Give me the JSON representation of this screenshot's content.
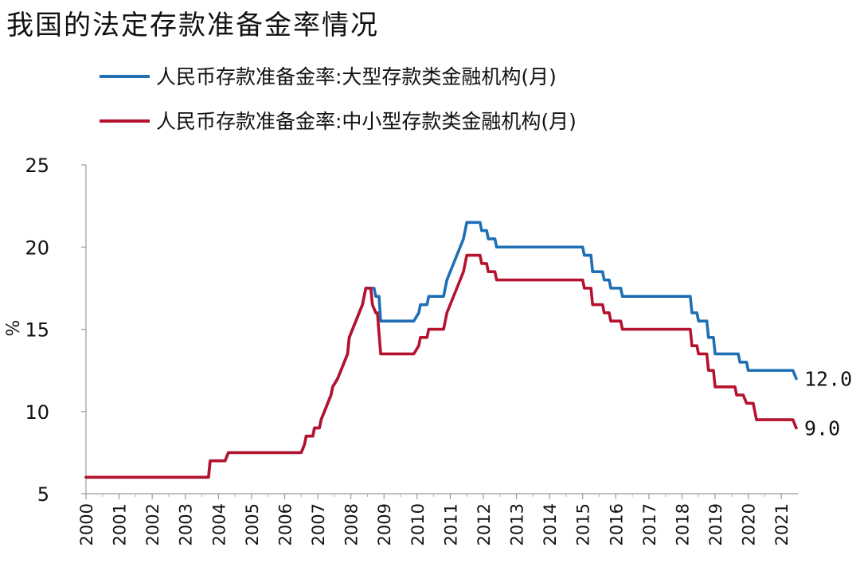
{
  "chart_data": {
    "type": "line",
    "title": "我国的法定存款准备金率情况",
    "ylabel": "%",
    "xlabel": "",
    "ylim": [
      5,
      25
    ],
    "yticks": [
      5,
      10,
      15,
      20,
      25
    ],
    "xlim": [
      2000,
      2021.5
    ],
    "xticks": [
      "2000",
      "2001",
      "2002",
      "2003",
      "2004",
      "2005",
      "2006",
      "2007",
      "2008",
      "2009",
      "2010",
      "2011",
      "2012",
      "2013",
      "2014",
      "2015",
      "2016",
      "2017",
      "2018",
      "2019",
      "2020",
      "2021"
    ],
    "grid": false,
    "legend_position": "top",
    "series": [
      {
        "name": "人民币存款准备金率:大型存款类金融机构(月)",
        "color": "#1f6fb5",
        "end_label": "12.0",
        "points": [
          [
            2000.0,
            6.0
          ],
          [
            2003.7,
            6.0
          ],
          [
            2003.75,
            7.0
          ],
          [
            2004.2,
            7.0
          ],
          [
            2004.3,
            7.5
          ],
          [
            2006.5,
            7.5
          ],
          [
            2006.6,
            8.0
          ],
          [
            2006.65,
            8.5
          ],
          [
            2006.85,
            8.5
          ],
          [
            2006.9,
            9.0
          ],
          [
            2007.05,
            9.0
          ],
          [
            2007.1,
            9.5
          ],
          [
            2007.2,
            10.0
          ],
          [
            2007.3,
            10.5
          ],
          [
            2007.4,
            11.0
          ],
          [
            2007.45,
            11.5
          ],
          [
            2007.6,
            12.0
          ],
          [
            2007.7,
            12.5
          ],
          [
            2007.8,
            13.0
          ],
          [
            2007.9,
            13.5
          ],
          [
            2007.95,
            14.5
          ],
          [
            2008.05,
            15.0
          ],
          [
            2008.15,
            15.5
          ],
          [
            2008.25,
            16.0
          ],
          [
            2008.35,
            16.5
          ],
          [
            2008.45,
            17.5
          ],
          [
            2008.7,
            17.5
          ],
          [
            2008.75,
            17.0
          ],
          [
            2008.85,
            17.0
          ],
          [
            2008.9,
            15.5
          ],
          [
            2009.9,
            15.5
          ],
          [
            2010.05,
            16.0
          ],
          [
            2010.1,
            16.5
          ],
          [
            2010.3,
            16.5
          ],
          [
            2010.35,
            17.0
          ],
          [
            2010.8,
            17.0
          ],
          [
            2010.85,
            17.5
          ],
          [
            2010.9,
            18.0
          ],
          [
            2011.0,
            18.5
          ],
          [
            2011.1,
            19.0
          ],
          [
            2011.2,
            19.5
          ],
          [
            2011.3,
            20.0
          ],
          [
            2011.4,
            20.5
          ],
          [
            2011.45,
            21.0
          ],
          [
            2011.5,
            21.5
          ],
          [
            2011.9,
            21.5
          ],
          [
            2011.95,
            21.0
          ],
          [
            2012.1,
            21.0
          ],
          [
            2012.15,
            20.5
          ],
          [
            2012.35,
            20.5
          ],
          [
            2012.4,
            20.0
          ],
          [
            2015.0,
            20.0
          ],
          [
            2015.05,
            19.5
          ],
          [
            2015.25,
            19.5
          ],
          [
            2015.3,
            18.5
          ],
          [
            2015.6,
            18.5
          ],
          [
            2015.65,
            18.0
          ],
          [
            2015.8,
            18.0
          ],
          [
            2015.85,
            17.5
          ],
          [
            2016.15,
            17.5
          ],
          [
            2016.2,
            17.0
          ],
          [
            2018.25,
            17.0
          ],
          [
            2018.3,
            16.0
          ],
          [
            2018.45,
            16.0
          ],
          [
            2018.5,
            15.5
          ],
          [
            2018.75,
            15.5
          ],
          [
            2018.8,
            14.5
          ],
          [
            2018.95,
            14.5
          ],
          [
            2019.0,
            13.5
          ],
          [
            2019.7,
            13.5
          ],
          [
            2019.75,
            13.0
          ],
          [
            2019.95,
            13.0
          ],
          [
            2020.0,
            12.5
          ],
          [
            2021.35,
            12.5
          ],
          [
            2021.45,
            12.0
          ]
        ]
      },
      {
        "name": "人民币存款准备金率:中小型存款类金融机构(月)",
        "color": "#b5122e",
        "end_label": "9.0",
        "points": [
          [
            2000.0,
            6.0
          ],
          [
            2003.7,
            6.0
          ],
          [
            2003.75,
            7.0
          ],
          [
            2004.2,
            7.0
          ],
          [
            2004.3,
            7.5
          ],
          [
            2006.5,
            7.5
          ],
          [
            2006.6,
            8.0
          ],
          [
            2006.65,
            8.5
          ],
          [
            2006.85,
            8.5
          ],
          [
            2006.9,
            9.0
          ],
          [
            2007.05,
            9.0
          ],
          [
            2007.1,
            9.5
          ],
          [
            2007.2,
            10.0
          ],
          [
            2007.3,
            10.5
          ],
          [
            2007.4,
            11.0
          ],
          [
            2007.45,
            11.5
          ],
          [
            2007.6,
            12.0
          ],
          [
            2007.7,
            12.5
          ],
          [
            2007.8,
            13.0
          ],
          [
            2007.9,
            13.5
          ],
          [
            2007.95,
            14.5
          ],
          [
            2008.05,
            15.0
          ],
          [
            2008.15,
            15.5
          ],
          [
            2008.25,
            16.0
          ],
          [
            2008.35,
            16.5
          ],
          [
            2008.45,
            17.5
          ],
          [
            2008.6,
            17.5
          ],
          [
            2008.65,
            16.5
          ],
          [
            2008.75,
            16.0
          ],
          [
            2008.8,
            16.0
          ],
          [
            2008.9,
            13.5
          ],
          [
            2009.9,
            13.5
          ],
          [
            2010.05,
            14.0
          ],
          [
            2010.1,
            14.5
          ],
          [
            2010.3,
            14.5
          ],
          [
            2010.35,
            15.0
          ],
          [
            2010.8,
            15.0
          ],
          [
            2010.85,
            15.5
          ],
          [
            2010.9,
            16.0
          ],
          [
            2011.0,
            16.5
          ],
          [
            2011.1,
            17.0
          ],
          [
            2011.2,
            17.5
          ],
          [
            2011.3,
            18.0
          ],
          [
            2011.4,
            18.5
          ],
          [
            2011.45,
            19.0
          ],
          [
            2011.5,
            19.5
          ],
          [
            2011.9,
            19.5
          ],
          [
            2011.95,
            19.0
          ],
          [
            2012.1,
            19.0
          ],
          [
            2012.15,
            18.5
          ],
          [
            2012.35,
            18.5
          ],
          [
            2012.4,
            18.0
          ],
          [
            2015.0,
            18.0
          ],
          [
            2015.05,
            17.5
          ],
          [
            2015.25,
            17.5
          ],
          [
            2015.3,
            16.5
          ],
          [
            2015.6,
            16.5
          ],
          [
            2015.65,
            16.0
          ],
          [
            2015.8,
            16.0
          ],
          [
            2015.85,
            15.5
          ],
          [
            2016.15,
            15.5
          ],
          [
            2016.2,
            15.0
          ],
          [
            2018.25,
            15.0
          ],
          [
            2018.3,
            14.0
          ],
          [
            2018.45,
            14.0
          ],
          [
            2018.5,
            13.5
          ],
          [
            2018.75,
            13.5
          ],
          [
            2018.8,
            12.5
          ],
          [
            2018.95,
            12.5
          ],
          [
            2019.0,
            11.5
          ],
          [
            2019.6,
            11.5
          ],
          [
            2019.65,
            11.0
          ],
          [
            2019.85,
            11.0
          ],
          [
            2019.95,
            10.5
          ],
          [
            2020.15,
            10.5
          ],
          [
            2020.25,
            9.5
          ],
          [
            2021.35,
            9.5
          ],
          [
            2021.45,
            9.0
          ]
        ]
      }
    ]
  }
}
